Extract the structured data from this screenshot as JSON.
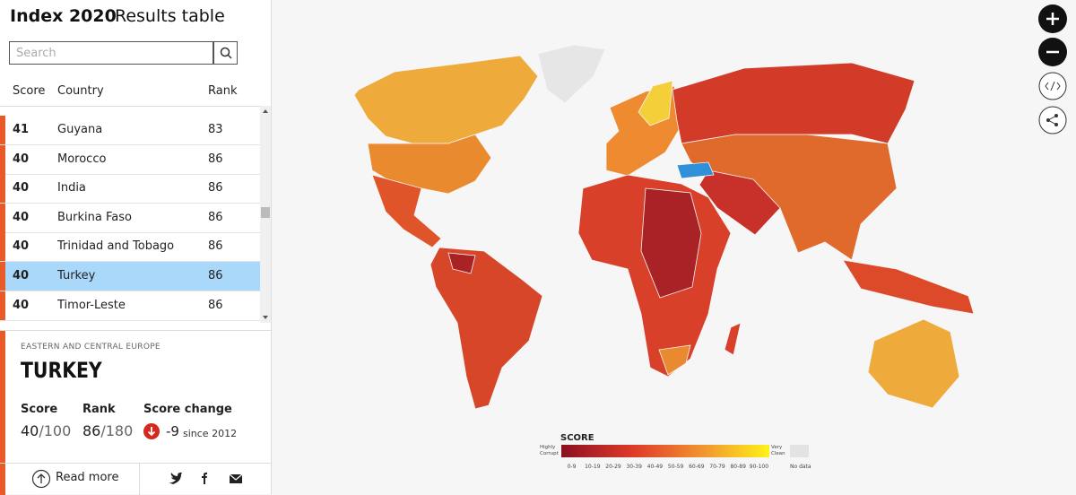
{
  "header": {
    "title": "Index 2020",
    "subtitle": "Results table"
  },
  "search": {
    "placeholder": "Search"
  },
  "table": {
    "columns": [
      "Score",
      "Country",
      "Rank"
    ],
    "rows": [
      [
        41,
        "Guyana",
        83
      ],
      [
        40,
        "Morocco",
        86
      ],
      [
        40,
        "India",
        86
      ],
      [
        40,
        "Burkina Faso",
        86
      ],
      [
        40,
        "Trinidad and Tobago",
        86
      ],
      [
        40,
        "Turkey",
        86
      ],
      [
        40,
        "Timor-Leste",
        86
      ]
    ],
    "selected_row": 5
  },
  "detail": {
    "region": "EASTERN AND CENTRAL EUROPE",
    "country": "TURKEY",
    "score_label": "Score",
    "score": 40,
    "score_max": "/100",
    "rank_label": "Rank",
    "rank": 86,
    "rank_max": "/180",
    "change_label": "Score change",
    "change": -9,
    "change_since": "since 2012"
  },
  "footer": {
    "read_more": "Read more"
  },
  "legend": {
    "title": "SCORE",
    "low": [
      "Highly",
      "Corrupt"
    ],
    "high": [
      "Very",
      "Clean"
    ],
    "no_data": "No data",
    "bins": [
      "0-9",
      "10-19",
      "20-29",
      "30-39",
      "40-49",
      "50-59",
      "60-69",
      "70-79",
      "80-89",
      "90-100"
    ]
  }
}
